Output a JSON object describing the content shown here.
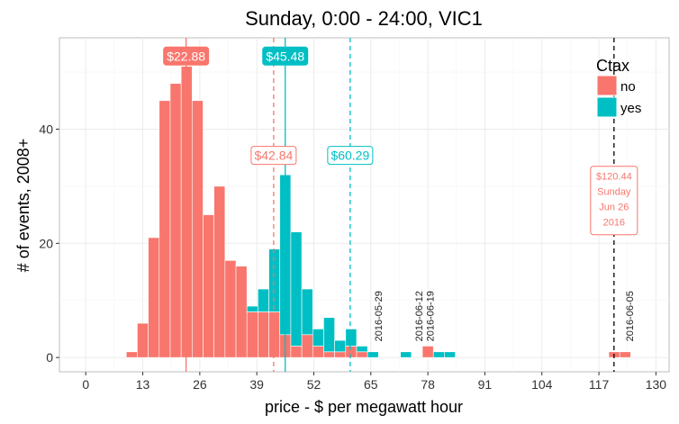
{
  "chart_data": {
    "type": "bar",
    "title": "Sunday, 0:00 - 24:00, VIC1",
    "xlabel": "price - $ per megawatt hour",
    "ylabel": "# of events, 2008+",
    "xlim": [
      -6,
      133
    ],
    "ylim": [
      -2.5,
      56
    ],
    "xticks": [
      0,
      13,
      26,
      39,
      52,
      65,
      78,
      91,
      104,
      117,
      130
    ],
    "yticks": [
      0,
      20,
      40
    ],
    "bin_width": 2.5,
    "grid": true,
    "legend": {
      "title": "Ctax",
      "position": "top-right",
      "entries": [
        {
          "label": "no",
          "color": "#F8766D"
        },
        {
          "label": "yes",
          "color": "#00BFC4"
        }
      ]
    },
    "series": [
      {
        "name": "no",
        "color": "#F8766D",
        "bins": [
          {
            "x0": 9.25,
            "count": 1
          },
          {
            "x0": 11.75,
            "count": 6
          },
          {
            "x0": 14.25,
            "count": 21
          },
          {
            "x0": 16.75,
            "count": 45
          },
          {
            "x0": 19.25,
            "count": 48
          },
          {
            "x0": 21.75,
            "count": 51
          },
          {
            "x0": 24.25,
            "count": 45
          },
          {
            "x0": 26.75,
            "count": 25
          },
          {
            "x0": 29.25,
            "count": 30
          },
          {
            "x0": 31.75,
            "count": 17
          },
          {
            "x0": 34.25,
            "count": 16
          },
          {
            "x0": 36.75,
            "count": 8
          },
          {
            "x0": 39.25,
            "count": 8
          },
          {
            "x0": 41.75,
            "count": 8
          },
          {
            "x0": 44.25,
            "count": 4
          },
          {
            "x0": 46.75,
            "count": 2
          },
          {
            "x0": 49.25,
            "count": 4
          },
          {
            "x0": 51.75,
            "count": 2
          },
          {
            "x0": 54.25,
            "count": 1
          },
          {
            "x0": 56.75,
            "count": 1
          },
          {
            "x0": 59.25,
            "count": 2
          },
          {
            "x0": 61.75,
            "count": 1
          },
          {
            "x0": 76.75,
            "count": 2
          },
          {
            "x0": 119.25,
            "count": 1
          },
          {
            "x0": 121.75,
            "count": 1
          }
        ]
      },
      {
        "name": "yes",
        "color": "#00BFC4",
        "bins": [
          {
            "x0": 36.75,
            "count": 1
          },
          {
            "x0": 39.25,
            "count": 4
          },
          {
            "x0": 41.75,
            "count": 11
          },
          {
            "x0": 44.25,
            "count": 28
          },
          {
            "x0": 46.75,
            "count": 20
          },
          {
            "x0": 49.25,
            "count": 8
          },
          {
            "x0": 51.75,
            "count": 3
          },
          {
            "x0": 54.25,
            "count": 6
          },
          {
            "x0": 56.75,
            "count": 2
          },
          {
            "x0": 59.25,
            "count": 3
          },
          {
            "x0": 61.75,
            "count": 1
          },
          {
            "x0": 64.25,
            "count": 1
          },
          {
            "x0": 71.75,
            "count": 1
          },
          {
            "x0": 79.25,
            "count": 1
          },
          {
            "x0": 81.75,
            "count": 1
          }
        ]
      }
    ],
    "reference_lines": [
      {
        "x": 22.88,
        "style": "solid",
        "color": "#F8766D"
      },
      {
        "x": 45.48,
        "style": "solid",
        "color": "#00BFC4"
      },
      {
        "x": 42.84,
        "style": "dashed",
        "color": "#F8766D"
      },
      {
        "x": 60.29,
        "style": "dashed",
        "color": "#00BFC4"
      },
      {
        "x": 120.44,
        "style": "dashed",
        "color": "#000000"
      }
    ],
    "annotations": {
      "median_no": {
        "text": "$22.88",
        "x": 22.88,
        "y": 52.8,
        "fill": "#F8766D",
        "text_color": "#ffffff",
        "filled": true
      },
      "median_yes": {
        "text": "$45.48",
        "x": 45.48,
        "y": 52.8,
        "fill": "#00BFC4",
        "text_color": "#ffffff",
        "filled": true
      },
      "mean_no": {
        "text": "$42.84",
        "x": 42.84,
        "y": 35.4,
        "fill": "#ffffff",
        "text_color": "#F8766D",
        "filled": false
      },
      "mean_yes": {
        "text": "$60.29",
        "x": 60.29,
        "y": 35.4,
        "fill": "#ffffff",
        "text_color": "#00BFC4",
        "filled": false
      },
      "current": {
        "lines": [
          "$120.44",
          "Sunday",
          "Jun 26",
          "2016"
        ],
        "x": 120.44,
        "y": 27.5,
        "text_color": "#F8766D"
      }
    },
    "date_labels": [
      {
        "text": "2016-05-29",
        "x": 67.5
      },
      {
        "text": "2016-06-12",
        "x": 76.7
      },
      {
        "text": "2016-06-19",
        "x": 79.3
      },
      {
        "text": "2016-06-05",
        "x": 124.8
      }
    ]
  }
}
